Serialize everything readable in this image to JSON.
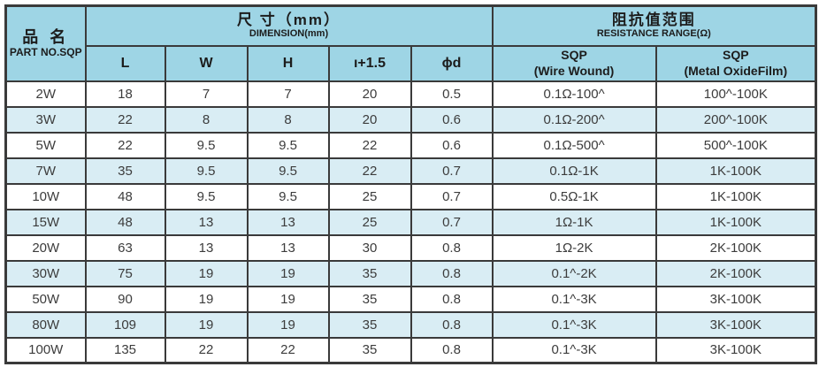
{
  "header": {
    "part": {
      "zh": "品 名",
      "en": "PART NO.SQP"
    },
    "dimension": {
      "zh": "尺 寸（mm）",
      "en": "DIMENSION(mm)"
    },
    "resistance": {
      "zh": "阻抗值范围",
      "en": "RESISTANCE RANGE(Ω)"
    },
    "dim_columns": [
      "L",
      "W",
      "H",
      "ı+1.5",
      "ϕd"
    ],
    "res_columns": [
      {
        "line1": "SQP",
        "line2": "(Wire Wound)"
      },
      {
        "line1": "SQP",
        "line2": "(Metal OxideFilm)"
      }
    ]
  },
  "rows": [
    [
      "2W",
      "18",
      "7",
      "7",
      "20",
      "0.5",
      "0.1Ω-100^",
      "100^-100K"
    ],
    [
      "3W",
      "22",
      "8",
      "8",
      "20",
      "0.6",
      "0.1Ω-200^",
      "200^-100K"
    ],
    [
      "5W",
      "22",
      "9.5",
      "9.5",
      "22",
      "0.6",
      "0.1Ω-500^",
      "500^-100K"
    ],
    [
      "7W",
      "35",
      "9.5",
      "9.5",
      "22",
      "0.7",
      "0.1Ω-1K",
      "1K-100K"
    ],
    [
      "10W",
      "48",
      "9.5",
      "9.5",
      "25",
      "0.7",
      "0.5Ω-1K",
      "1K-100K"
    ],
    [
      "15W",
      "48",
      "13",
      "13",
      "25",
      "0.7",
      "1Ω-1K",
      "1K-100K"
    ],
    [
      "20W",
      "63",
      "13",
      "13",
      "30",
      "0.8",
      "1Ω-2K",
      "2K-100K"
    ],
    [
      "30W",
      "75",
      "19",
      "19",
      "35",
      "0.8",
      "0.1^-2K",
      "2K-100K"
    ],
    [
      "50W",
      "90",
      "19",
      "19",
      "35",
      "0.8",
      "0.1^-3K",
      "3K-100K"
    ],
    [
      "80W",
      "109",
      "19",
      "19",
      "35",
      "0.8",
      "0.1^-3K",
      "3K-100K"
    ],
    [
      "100W",
      "135",
      "22",
      "22",
      "35",
      "0.8",
      "0.1^-3K",
      "3K-100K"
    ]
  ],
  "colors": {
    "header_bg": "#9ed5e5",
    "stripe_bg": "#d9edf4",
    "border": "#3a3a3a",
    "data_text": "#3c3c3c"
  }
}
